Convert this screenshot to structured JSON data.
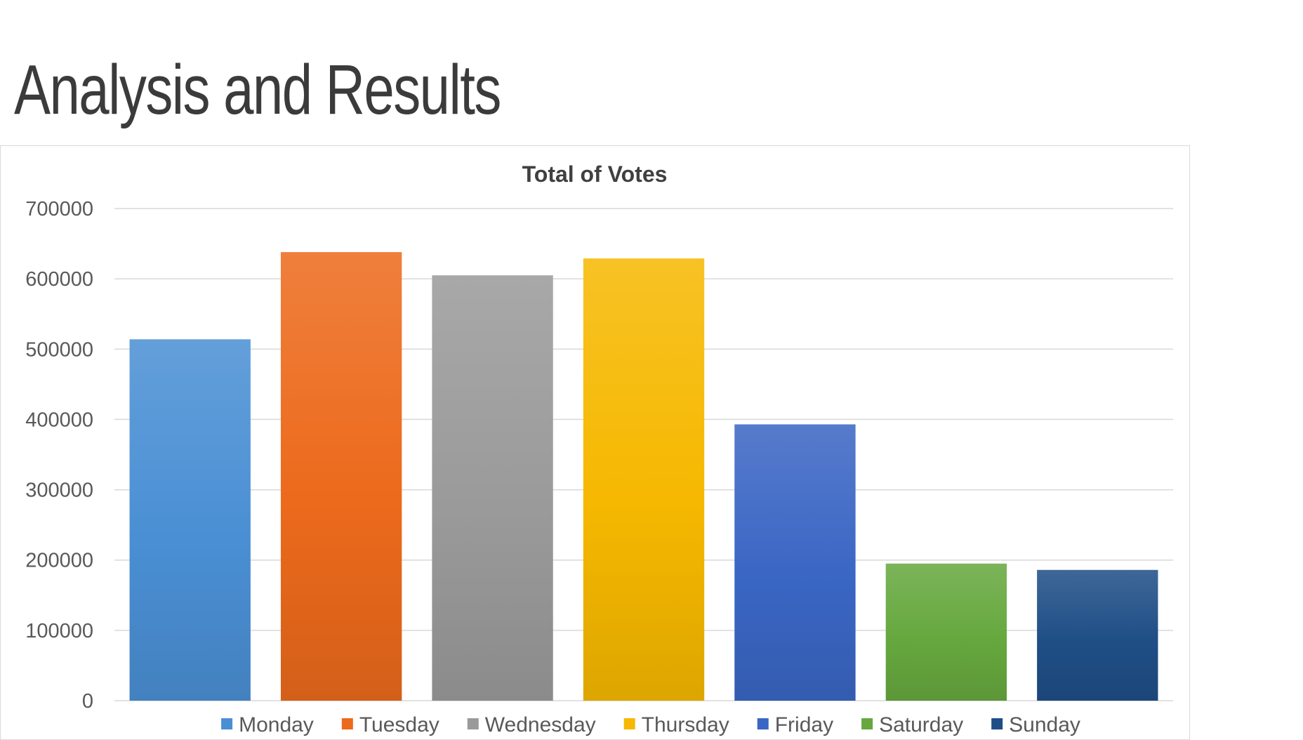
{
  "slide": {
    "title": "Analysis and Results"
  },
  "chart_data": {
    "type": "bar",
    "title": "Total  of Votes",
    "xlabel": "",
    "ylabel": "",
    "ylim": [
      0,
      700000
    ],
    "yticks": [
      0,
      100000,
      200000,
      300000,
      400000,
      500000,
      600000,
      700000
    ],
    "ytick_labels": [
      "0",
      "100000",
      "200000",
      "300000",
      "400000",
      "500000",
      "600000",
      "700000"
    ],
    "grid": true,
    "legend_position": "bottom",
    "categories": [
      "Monday",
      "Tuesday",
      "Wednesday",
      "Thursday",
      "Friday",
      "Saturday",
      "Sunday"
    ],
    "values": [
      514000,
      638000,
      605000,
      629000,
      393000,
      195000,
      186000
    ],
    "colors": [
      "#4a8fd4",
      "#ec6a1c",
      "#9a9a9a",
      "#f6b800",
      "#3a66c4",
      "#66a83e",
      "#1f4e86"
    ]
  }
}
